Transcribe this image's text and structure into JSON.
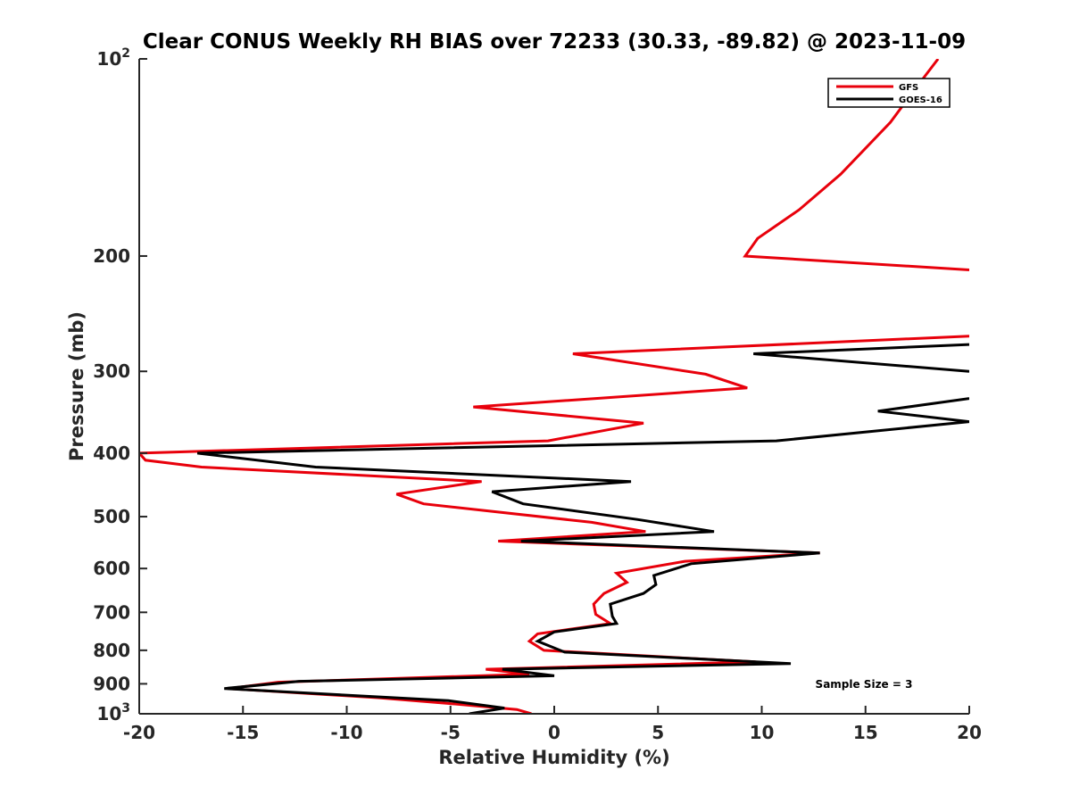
{
  "chart_data": {
    "type": "line",
    "title": "Clear CONUS Weekly RH BIAS over 72233 (30.33, -89.82) @ 2023-11-09",
    "xlabel": "Relative Humidity (%)",
    "ylabel": "Pressure (mb)",
    "xlim": [
      -20,
      20
    ],
    "ylim": [
      100,
      1000
    ],
    "y_scale": "log",
    "y_reversed": true,
    "x_ticks": [
      "-20",
      "-15",
      "-10",
      "-5",
      "0",
      "5",
      "10",
      "15",
      "20"
    ],
    "y_ticks": [
      {
        "value": 100,
        "base": "10",
        "exp": "2"
      },
      {
        "value": 200,
        "label": "200"
      },
      {
        "value": 300,
        "label": "300"
      },
      {
        "value": 400,
        "label": "400"
      },
      {
        "value": 500,
        "label": "500"
      },
      {
        "value": 600,
        "label": "600"
      },
      {
        "value": 700,
        "label": "700"
      },
      {
        "value": 800,
        "label": "800"
      },
      {
        "value": 900,
        "label": "900"
      },
      {
        "value": 1000,
        "base": "10",
        "exp": "3"
      }
    ],
    "legend_position": "top-right",
    "grid": false,
    "annotation": "Sample Size = 3",
    "series": [
      {
        "name": "GFS",
        "color": "#e8000b",
        "points": [
          [
            18.5,
            100
          ],
          [
            17.5,
            110
          ],
          [
            16.2,
            125
          ],
          [
            13.8,
            150
          ],
          [
            11.8,
            170
          ],
          [
            9.8,
            188
          ],
          [
            9.2,
            200
          ],
          [
            20,
            210
          ],
          [
            null,
            null
          ],
          [
            20,
            265
          ],
          [
            0.9,
            282
          ],
          [
            7.3,
            303
          ],
          [
            9.3,
            318
          ],
          [
            -3.9,
            340
          ],
          [
            4.3,
            360
          ],
          [
            -0.3,
            383
          ],
          [
            -20,
            400
          ],
          [
            -19.7,
            410
          ],
          [
            -17,
            420
          ],
          [
            -3.5,
            442
          ],
          [
            -7.6,
            462
          ],
          [
            -6.3,
            478
          ],
          [
            1.8,
            510
          ],
          [
            4.4,
            527
          ],
          [
            -2.7,
            545
          ],
          [
            12.8,
            568
          ],
          [
            6.3,
            585
          ],
          [
            3.0,
            610
          ],
          [
            3.5,
            630
          ],
          [
            2.4,
            655
          ],
          [
            1.9,
            680
          ],
          [
            2.0,
            705
          ],
          [
            2.7,
            728
          ],
          [
            -0.8,
            755
          ],
          [
            -1.2,
            775
          ],
          [
            -0.5,
            800
          ],
          [
            9.7,
            833
          ],
          [
            -3.3,
            855
          ],
          [
            -1.2,
            870
          ],
          [
            -13.3,
            895
          ],
          [
            -15.7,
            915
          ],
          [
            -8.5,
            945
          ],
          [
            -5.0,
            965
          ],
          [
            -1.8,
            985
          ],
          [
            -1.1,
            1000
          ]
        ]
      },
      {
        "name": "GOES-16",
        "color": "#000000",
        "points": [
          [
            20,
            273
          ],
          [
            9.6,
            282
          ],
          [
            20,
            300
          ],
          [
            null,
            null
          ],
          [
            20,
            330
          ],
          [
            15.6,
            345
          ],
          [
            20,
            358
          ],
          [
            10.7,
            383
          ],
          [
            -17.2,
            400
          ],
          [
            -11.5,
            420
          ],
          [
            3.7,
            442
          ],
          [
            -3.0,
            458
          ],
          [
            -1.5,
            478
          ],
          [
            4.0,
            505
          ],
          [
            7.7,
            527
          ],
          [
            -1.6,
            545
          ],
          [
            12.8,
            568
          ],
          [
            6.6,
            590
          ],
          [
            4.8,
            615
          ],
          [
            4.9,
            635
          ],
          [
            4.3,
            655
          ],
          [
            2.7,
            680
          ],
          [
            2.8,
            710
          ],
          [
            3.0,
            728
          ],
          [
            0,
            750
          ],
          [
            -0.8,
            775
          ],
          [
            0.5,
            805
          ],
          [
            11.4,
            838
          ],
          [
            -2.5,
            855
          ],
          [
            0,
            875
          ],
          [
            -12.3,
            892
          ],
          [
            -15.9,
            915
          ],
          [
            -5.1,
            955
          ],
          [
            -2.4,
            980
          ],
          [
            -4.1,
            1000
          ]
        ]
      }
    ]
  }
}
